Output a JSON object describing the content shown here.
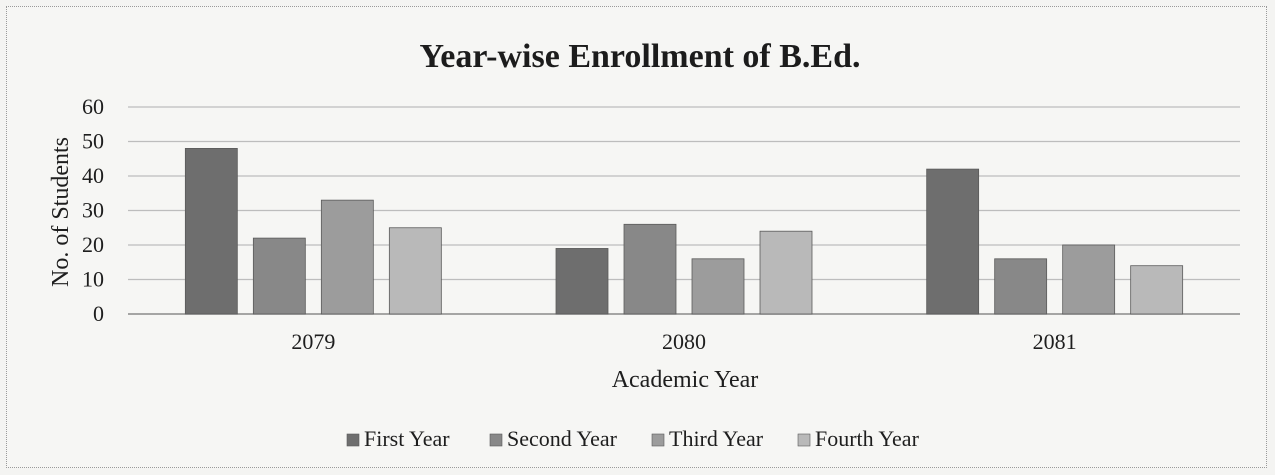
{
  "chart_data": {
    "type": "bar",
    "title": "Year-wise Enrollment of B.Ed.",
    "xlabel": "Academic Year",
    "ylabel": "No. of Students",
    "categories": [
      "2079",
      "2080",
      "2081"
    ],
    "series": [
      {
        "name": "First Year",
        "values": [
          48,
          19,
          42
        ],
        "color": "#6e6e6e"
      },
      {
        "name": "Second Year",
        "values": [
          22,
          26,
          16
        ],
        "color": "#888888"
      },
      {
        "name": "Third Year",
        "values": [
          33,
          16,
          20
        ],
        "color": "#9c9c9c"
      },
      {
        "name": "Fourth Year",
        "values": [
          25,
          24,
          14
        ],
        "color": "#b9b9b9"
      }
    ],
    "ylim": [
      0,
      60
    ],
    "yticks": [
      0,
      10,
      20,
      30,
      40,
      50,
      60
    ],
    "grid": true,
    "legend_position": "bottom"
  }
}
